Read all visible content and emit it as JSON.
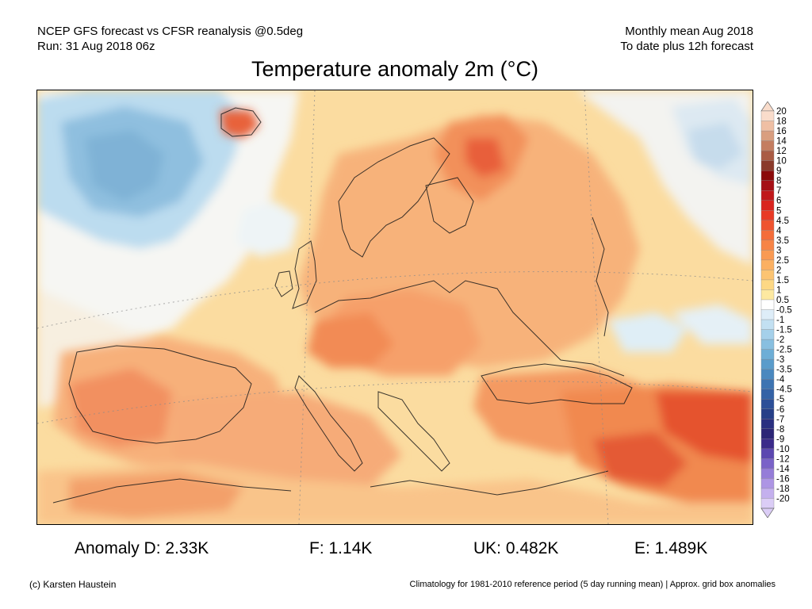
{
  "header": {
    "left_line1": "NCEP GFS forecast vs CFSR reanalysis @0.5deg",
    "left_line2": "Run: 31 Aug 2018 06z",
    "right_line1": "Monthly mean Aug 2018",
    "right_line2": "To date plus 12h forecast"
  },
  "title": "Temperature anomaly 2m (°C)",
  "colorbar": {
    "labels": [
      "20",
      "18",
      "16",
      "14",
      "12",
      "10",
      "9",
      "8",
      "7",
      "6",
      "5",
      "4.5",
      "4",
      "3.5",
      "3",
      "2.5",
      "2",
      "1.5",
      "1",
      "0.5",
      "-0.5",
      "-1",
      "-1.5",
      "-2",
      "-2.5",
      "-3",
      "-3.5",
      "-4",
      "-4.5",
      "-5",
      "-6",
      "-7",
      "-8",
      "-9",
      "-10",
      "-12",
      "-14",
      "-16",
      "-18",
      "-20"
    ],
    "colors": [
      "#f9dccb",
      "#efbfa4",
      "#d99e7f",
      "#c47d60",
      "#aa5c44",
      "#8a3a2a",
      "#8b0a0a",
      "#a50f15",
      "#c0181a",
      "#d9241f",
      "#e83a25",
      "#ef5430",
      "#f46d3a",
      "#f78446",
      "#f99a53",
      "#fbb062",
      "#fcc472",
      "#fdd885",
      "#fde9a1",
      "#ffffff",
      "#deedf8",
      "#c2e0f2",
      "#a5d0ea",
      "#88bfe0",
      "#6eaed6",
      "#5a9ccb",
      "#4a88bf",
      "#3d74b2",
      "#3462a6",
      "#2c4f98",
      "#263f88",
      "#2a2f80",
      "#2c2576",
      "#3b2a8a",
      "#5c47b0",
      "#7a62c8",
      "#957cd8",
      "#ad95e4",
      "#c4b0ee",
      "#dbcdf6"
    ]
  },
  "anomalies": {
    "d": "Anomaly D: 2.33K",
    "f": "F: 1.14K",
    "uk": "UK: 0.482K",
    "e": "E: 1.489K"
  },
  "footer": {
    "left": "(c) Karsten Haustein",
    "right": "Climatology for 1981-2010 reference period (5 day running mean) | Approx. grid box anomalies"
  }
}
